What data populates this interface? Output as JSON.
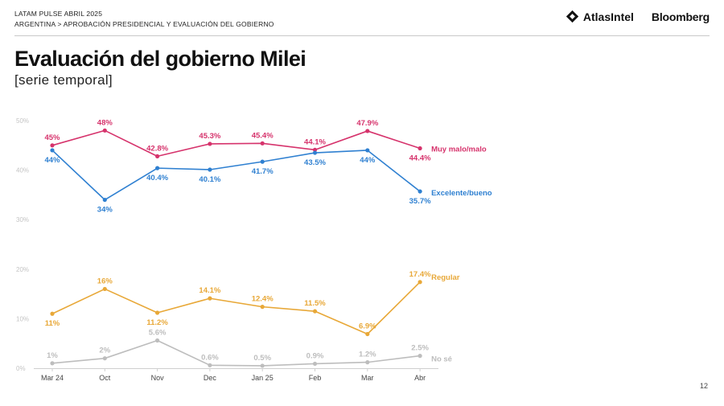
{
  "header": {
    "line1": "LATAM PULSE ABRIL 2025",
    "line2": "ARGENTINA > APROBACIÓN PRESIDENCIAL Y EVALUACIÓN DEL GOBIERNO",
    "logo_atlas": "AtlasIntel",
    "logo_bloomberg": "Bloomberg"
  },
  "title": "Evaluación del gobierno Milei",
  "subtitle": "[serie temporal]",
  "page_number": "12",
  "chart_data": {
    "type": "line",
    "categories": [
      "Mar 24",
      "Oct",
      "Nov",
      "Dec",
      "Jan 25",
      "Feb",
      "Mar",
      "Abr"
    ],
    "yticks": [
      "0%",
      "10%",
      "20%",
      "30%",
      "40%",
      "50%"
    ],
    "ylim": [
      0,
      50
    ],
    "grid": false,
    "series": [
      {
        "name": "Muy malo/malo",
        "color": "#d6336c",
        "values": [
          45,
          48,
          42.8,
          45.3,
          45.4,
          44.1,
          47.9,
          44.4
        ],
        "labels": [
          "45%",
          "48%",
          "42.8%",
          "45.3%",
          "45.4%",
          "44.1%",
          "47.9%",
          "44.4%"
        ]
      },
      {
        "name": "Excelente/bueno",
        "color": "#2f80d1",
        "values": [
          44,
          34,
          40.4,
          40.1,
          41.7,
          43.5,
          44,
          35.7
        ],
        "labels": [
          "44%",
          "34%",
          "40.4%",
          "40.1%",
          "41.7%",
          "43.5%",
          "44%",
          "35.7%"
        ]
      },
      {
        "name": "Regular",
        "color": "#e8a838",
        "values": [
          11,
          16,
          11.2,
          14.1,
          12.4,
          11.5,
          6.9,
          17.4
        ],
        "labels": [
          "11%",
          "16%",
          "11.2%",
          "14.1%",
          "12.4%",
          "11.5%",
          "6.9%",
          "17.4%"
        ]
      },
      {
        "name": "No sé",
        "color": "#bdbdbd",
        "values": [
          1,
          2,
          5.6,
          0.6,
          0.5,
          0.9,
          1.2,
          2.5
        ],
        "labels": [
          "1%",
          "2%",
          "5.6%",
          "0.6%",
          "0.5%",
          "0.9%",
          "1.2%",
          "2.5%"
        ]
      }
    ]
  }
}
